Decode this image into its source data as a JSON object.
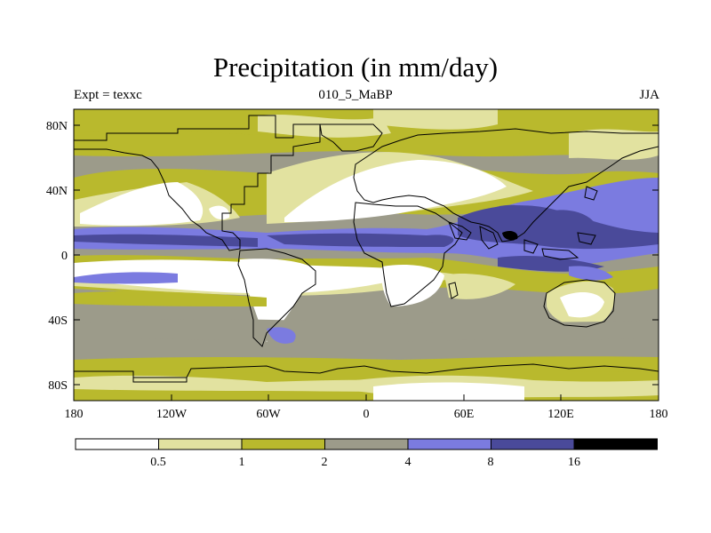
{
  "title": "Precipitation (in mm/day)",
  "subtitle_left": "Expt = texxc",
  "subtitle_center": "010_5_MaBP",
  "subtitle_right": "JJA",
  "y_ticks": [
    "80N",
    "40N",
    "0",
    "40S",
    "80S"
  ],
  "x_ticks": [
    "180",
    "120W",
    "60W",
    "0",
    "60E",
    "120E",
    "180"
  ],
  "colorbar": {
    "labels": [
      "0.5",
      "1",
      "2",
      "4",
      "8",
      "16"
    ],
    "colors": [
      "#ffffff",
      "#e2e2a0",
      "#b9b92d",
      "#9c9b8a",
      "#7b7be0",
      "#4a4a9a",
      "#000000"
    ]
  },
  "chart_data": {
    "type": "heatmap",
    "variable": "Precipitation",
    "units": "mm/day",
    "season": "JJA",
    "xlim": [
      -180,
      180
    ],
    "ylim": [
      -90,
      90
    ],
    "levels": [
      0.5,
      1,
      2,
      4,
      8,
      16
    ]
  }
}
